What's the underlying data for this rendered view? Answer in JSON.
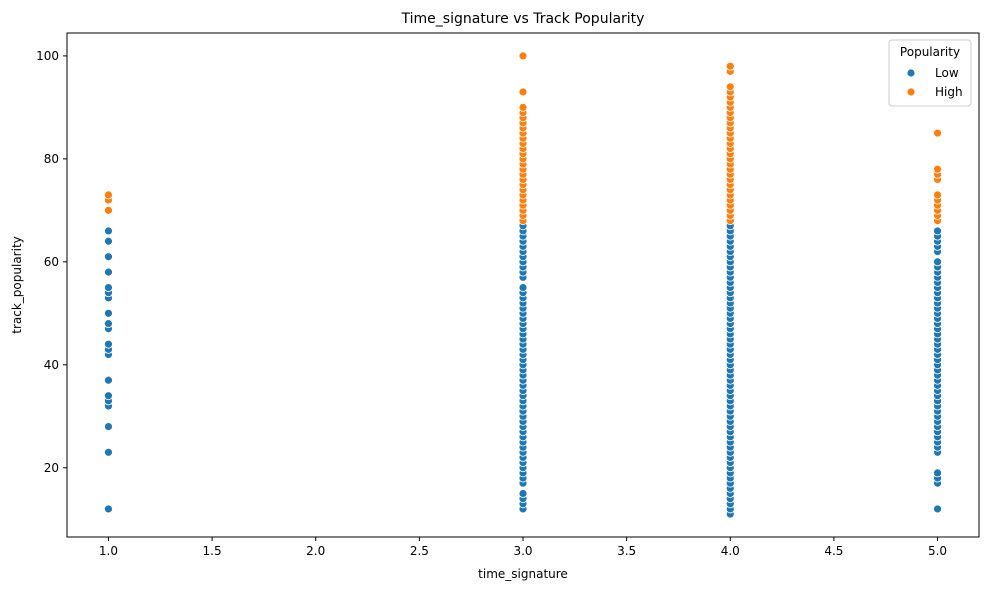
{
  "chart_data": {
    "type": "scatter",
    "title": "Time_signature vs Track Popularity",
    "xlabel": "time_signature",
    "ylabel": "track_popularity",
    "xlim": [
      0.8,
      5.2
    ],
    "ylim": [
      6.55,
      104.45
    ],
    "xticks": [
      "1.0",
      "1.5",
      "2.0",
      "2.5",
      "3.0",
      "3.5",
      "4.0",
      "4.5",
      "5.0"
    ],
    "yticks": [
      "20",
      "40",
      "60",
      "80",
      "100"
    ],
    "grid": false,
    "legend": {
      "title": "Popularity",
      "placement": "top-right"
    },
    "series": [
      {
        "name": "Low",
        "color": "#1f77b4",
        "points": [
          [
            1,
            12
          ],
          [
            1,
            23
          ],
          [
            1,
            28
          ],
          [
            1,
            32
          ],
          [
            1,
            33
          ],
          [
            1,
            34
          ],
          [
            1,
            37
          ],
          [
            1,
            42
          ],
          [
            1,
            43
          ],
          [
            1,
            44
          ],
          [
            1,
            47
          ],
          [
            1,
            48
          ],
          [
            1,
            50
          ],
          [
            1,
            53
          ],
          [
            1,
            54
          ],
          [
            1,
            55
          ],
          [
            1,
            58
          ],
          [
            1,
            61
          ],
          [
            1,
            64
          ],
          [
            1,
            66
          ],
          [
            3,
            12
          ],
          [
            3,
            13
          ],
          [
            3,
            14
          ],
          [
            3,
            15
          ],
          [
            3,
            17
          ],
          [
            3,
            18
          ],
          [
            3,
            19
          ],
          [
            3,
            20
          ],
          [
            3,
            21
          ],
          [
            3,
            22
          ],
          [
            3,
            23
          ],
          [
            3,
            24
          ],
          [
            3,
            25
          ],
          [
            3,
            26
          ],
          [
            3,
            27
          ],
          [
            3,
            28
          ],
          [
            3,
            29
          ],
          [
            3,
            30
          ],
          [
            3,
            31
          ],
          [
            3,
            32
          ],
          [
            3,
            33
          ],
          [
            3,
            34
          ],
          [
            3,
            35
          ],
          [
            3,
            36
          ],
          [
            3,
            37
          ],
          [
            3,
            38
          ],
          [
            3,
            39
          ],
          [
            3,
            40
          ],
          [
            3,
            41
          ],
          [
            3,
            42
          ],
          [
            3,
            43
          ],
          [
            3,
            44
          ],
          [
            3,
            45
          ],
          [
            3,
            46
          ],
          [
            3,
            47
          ],
          [
            3,
            48
          ],
          [
            3,
            49
          ],
          [
            3,
            50
          ],
          [
            3,
            51
          ],
          [
            3,
            52
          ],
          [
            3,
            53
          ],
          [
            3,
            54
          ],
          [
            3,
            55
          ],
          [
            3,
            57
          ],
          [
            3,
            58
          ],
          [
            3,
            59
          ],
          [
            3,
            60
          ],
          [
            3,
            61
          ],
          [
            3,
            62
          ],
          [
            3,
            63
          ],
          [
            3,
            64
          ],
          [
            3,
            65
          ],
          [
            3,
            66
          ],
          [
            3,
            67
          ],
          [
            4,
            11
          ],
          [
            4,
            12
          ],
          [
            4,
            13
          ],
          [
            4,
            14
          ],
          [
            4,
            15
          ],
          [
            4,
            16
          ],
          [
            4,
            17
          ],
          [
            4,
            18
          ],
          [
            4,
            19
          ],
          [
            4,
            20
          ],
          [
            4,
            21
          ],
          [
            4,
            22
          ],
          [
            4,
            23
          ],
          [
            4,
            24
          ],
          [
            4,
            25
          ],
          [
            4,
            26
          ],
          [
            4,
            27
          ],
          [
            4,
            28
          ],
          [
            4,
            29
          ],
          [
            4,
            30
          ],
          [
            4,
            31
          ],
          [
            4,
            32
          ],
          [
            4,
            33
          ],
          [
            4,
            34
          ],
          [
            4,
            35
          ],
          [
            4,
            36
          ],
          [
            4,
            37
          ],
          [
            4,
            38
          ],
          [
            4,
            39
          ],
          [
            4,
            40
          ],
          [
            4,
            41
          ],
          [
            4,
            42
          ],
          [
            4,
            43
          ],
          [
            4,
            44
          ],
          [
            4,
            45
          ],
          [
            4,
            46
          ],
          [
            4,
            47
          ],
          [
            4,
            48
          ],
          [
            4,
            49
          ],
          [
            4,
            50
          ],
          [
            4,
            51
          ],
          [
            4,
            52
          ],
          [
            4,
            53
          ],
          [
            4,
            54
          ],
          [
            4,
            55
          ],
          [
            4,
            56
          ],
          [
            4,
            57
          ],
          [
            4,
            58
          ],
          [
            4,
            59
          ],
          [
            4,
            60
          ],
          [
            4,
            61
          ],
          [
            4,
            62
          ],
          [
            4,
            63
          ],
          [
            4,
            64
          ],
          [
            4,
            65
          ],
          [
            4,
            66
          ],
          [
            4,
            67
          ],
          [
            5,
            12
          ],
          [
            5,
            17
          ],
          [
            5,
            18
          ],
          [
            5,
            19
          ],
          [
            5,
            23
          ],
          [
            5,
            24
          ],
          [
            5,
            25
          ],
          [
            5,
            26
          ],
          [
            5,
            27
          ],
          [
            5,
            28
          ],
          [
            5,
            29
          ],
          [
            5,
            30
          ],
          [
            5,
            31
          ],
          [
            5,
            32
          ],
          [
            5,
            33
          ],
          [
            5,
            34
          ],
          [
            5,
            35
          ],
          [
            5,
            36
          ],
          [
            5,
            37
          ],
          [
            5,
            38
          ],
          [
            5,
            39
          ],
          [
            5,
            40
          ],
          [
            5,
            41
          ],
          [
            5,
            42
          ],
          [
            5,
            43
          ],
          [
            5,
            44
          ],
          [
            5,
            45
          ],
          [
            5,
            46
          ],
          [
            5,
            47
          ],
          [
            5,
            48
          ],
          [
            5,
            49
          ],
          [
            5,
            50
          ],
          [
            5,
            51
          ],
          [
            5,
            52
          ],
          [
            5,
            53
          ],
          [
            5,
            54
          ],
          [
            5,
            55
          ],
          [
            5,
            56
          ],
          [
            5,
            57
          ],
          [
            5,
            58
          ],
          [
            5,
            59
          ],
          [
            5,
            60
          ],
          [
            5,
            62
          ],
          [
            5,
            63
          ],
          [
            5,
            64
          ],
          [
            5,
            65
          ],
          [
            5,
            66
          ]
        ]
      },
      {
        "name": "High",
        "color": "#ff7f0e",
        "points": [
          [
            1,
            70
          ],
          [
            1,
            72
          ],
          [
            1,
            73
          ],
          [
            3,
            68
          ],
          [
            3,
            69
          ],
          [
            3,
            70
          ],
          [
            3,
            71
          ],
          [
            3,
            72
          ],
          [
            3,
            73
          ],
          [
            3,
            74
          ],
          [
            3,
            75
          ],
          [
            3,
            76
          ],
          [
            3,
            77
          ],
          [
            3,
            78
          ],
          [
            3,
            79
          ],
          [
            3,
            80
          ],
          [
            3,
            81
          ],
          [
            3,
            82
          ],
          [
            3,
            83
          ],
          [
            3,
            84
          ],
          [
            3,
            85
          ],
          [
            3,
            86
          ],
          [
            3,
            87
          ],
          [
            3,
            88
          ],
          [
            3,
            89
          ],
          [
            3,
            90
          ],
          [
            3,
            93
          ],
          [
            3,
            100
          ],
          [
            4,
            68
          ],
          [
            4,
            69
          ],
          [
            4,
            70
          ],
          [
            4,
            71
          ],
          [
            4,
            72
          ],
          [
            4,
            73
          ],
          [
            4,
            74
          ],
          [
            4,
            75
          ],
          [
            4,
            76
          ],
          [
            4,
            77
          ],
          [
            4,
            78
          ],
          [
            4,
            79
          ],
          [
            4,
            80
          ],
          [
            4,
            81
          ],
          [
            4,
            82
          ],
          [
            4,
            83
          ],
          [
            4,
            84
          ],
          [
            4,
            85
          ],
          [
            4,
            86
          ],
          [
            4,
            87
          ],
          [
            4,
            88
          ],
          [
            4,
            89
          ],
          [
            4,
            90
          ],
          [
            4,
            91
          ],
          [
            4,
            92
          ],
          [
            4,
            93
          ],
          [
            4,
            94
          ],
          [
            4,
            97
          ],
          [
            4,
            98
          ],
          [
            5,
            68
          ],
          [
            5,
            69
          ],
          [
            5,
            70
          ],
          [
            5,
            71
          ],
          [
            5,
            72
          ],
          [
            5,
            73
          ],
          [
            5,
            76
          ],
          [
            5,
            77
          ],
          [
            5,
            78
          ],
          [
            5,
            85
          ]
        ]
      }
    ]
  }
}
